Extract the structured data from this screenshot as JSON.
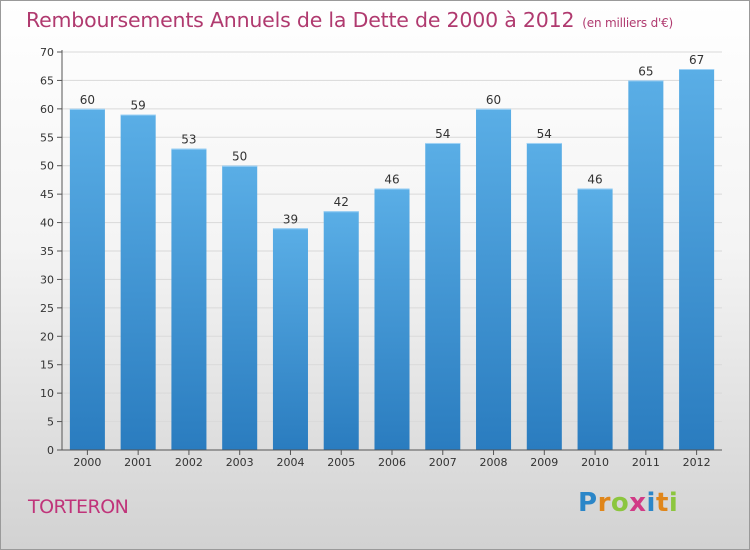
{
  "chart_data": {
    "type": "bar",
    "title": "Remboursements Annuels de la Dette de 2000 à 2012",
    "unit_label": "(en milliers d'€)",
    "categories": [
      "2000",
      "2001",
      "2002",
      "2003",
      "2004",
      "2005",
      "2006",
      "2007",
      "2008",
      "2009",
      "2010",
      "2011",
      "2012"
    ],
    "values": [
      60,
      59,
      53,
      50,
      39,
      42,
      46,
      54,
      60,
      54,
      46,
      65,
      67
    ],
    "ylim": [
      0,
      70
    ],
    "yticks": [
      0,
      5,
      10,
      15,
      20,
      25,
      30,
      35,
      40,
      45,
      50,
      55,
      60,
      65,
      70
    ],
    "xlabel": "",
    "ylabel": "",
    "grid": true,
    "bar_color_light": "#5aaee6",
    "bar_color_dark": "#2a7cbf"
  },
  "footer": {
    "commune": "TORTERON",
    "brand_letters": [
      "P",
      "r",
      "o",
      "x",
      "i",
      "t",
      "i"
    ],
    "brand_colors": [
      "#2b86c8",
      "#e0861a",
      "#8cc63e",
      "#d13a86",
      "#2b86c8",
      "#e0861a",
      "#8cc63e"
    ]
  },
  "colors": {
    "title": "#b03a6f",
    "grid": "#d9d9d9",
    "axis": "#555555"
  }
}
